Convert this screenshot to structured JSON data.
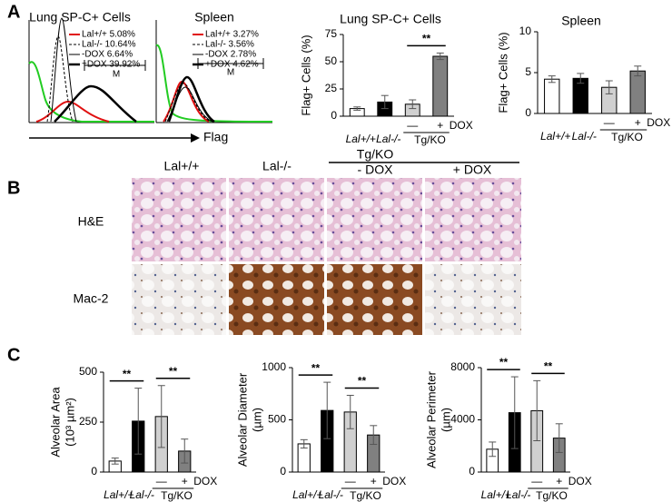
{
  "panels": [
    "A",
    "B",
    "C"
  ],
  "flow": {
    "x_label": "Flag",
    "plots": [
      {
        "title": "Lung SP-C+ Cells",
        "gate": "M",
        "legend": [
          "Lal+/+ 5.08%",
          "Lal-/- 10.64%",
          "-DOX 6.64%",
          "+DOX 39.92%"
        ]
      },
      {
        "title": "Spleen",
        "gate": "M",
        "legend": [
          "Lal+/+ 3.27%",
          "Lal-/- 3.56%",
          "-DOX 2.78%",
          "+DOX 4.62%"
        ]
      }
    ]
  },
  "histology": {
    "columns": [
      "Lal+/+",
      "Lal-/-",
      "- DOX",
      "+ DOX"
    ],
    "group": "Tg/KO",
    "rows": [
      "H&E",
      "Mac-2"
    ]
  },
  "chart_data": [
    {
      "type": "bar",
      "title": "Lung SP-C+ Cells",
      "ylabel": [
        "Flag+ Cells (%)"
      ],
      "categories": [
        "Lal+/+",
        "Lal-/-",
        "—",
        "+"
      ],
      "group": "Tg/KO",
      "treatment": "DOX",
      "colors": [
        "#ffffff",
        "#000000",
        "#d0d0d0",
        "#808080"
      ],
      "values": [
        7,
        13,
        11,
        55
      ],
      "errors": [
        1.5,
        6,
        4,
        3
      ],
      "ylim": [
        0,
        75
      ],
      "yticks": [
        0,
        25,
        50,
        75
      ],
      "brackets": [
        {
          "text": "**",
          "between": [
            "—",
            "+"
          ]
        }
      ]
    },
    {
      "type": "bar",
      "title": "Spleen",
      "ylabel": [
        "Flag+ Cells (%)"
      ],
      "categories": [
        "Lal+/+",
        "Lal-/-",
        "—",
        "+"
      ],
      "group": "Tg/KO",
      "treatment": "DOX",
      "colors": [
        "#ffffff",
        "#000000",
        "#d0d0d0",
        "#808080"
      ],
      "values": [
        4.2,
        4.3,
        3.2,
        5.2
      ],
      "errors": [
        0.4,
        0.6,
        0.8,
        0.6
      ],
      "ylim": [
        0,
        10
      ],
      "yticks": [
        0,
        5,
        10
      ],
      "brackets": []
    },
    {
      "type": "bar",
      "ylabel": [
        "Alveolar Area",
        "(10³ µm²)"
      ],
      "categories": [
        "Lal+/+",
        "Lal-/-",
        "—",
        "+"
      ],
      "group": "Tg/KO",
      "treatment": "DOX",
      "colors": [
        "#ffffff",
        "#000000",
        "#d0d0d0",
        "#808080"
      ],
      "values": [
        55,
        255,
        278,
        105
      ],
      "errors": [
        15,
        165,
        155,
        60
      ],
      "ylim": [
        0,
        500
      ],
      "yticks": [
        0,
        250,
        500
      ],
      "brackets": [
        {
          "text": "**",
          "between": [
            "Lal+/+",
            "Lal-/-"
          ]
        },
        {
          "text": "**",
          "between": [
            "—",
            "+"
          ]
        }
      ]
    },
    {
      "type": "bar",
      "ylabel": [
        "Alveolar Diameter",
        "(µm)"
      ],
      "categories": [
        "Lal+/+",
        "Lal-/-",
        "—",
        "+"
      ],
      "group": "Tg/KO",
      "treatment": "DOX",
      "colors": [
        "#ffffff",
        "#000000",
        "#d0d0d0",
        "#808080"
      ],
      "values": [
        270,
        590,
        575,
        355
      ],
      "errors": [
        40,
        270,
        160,
        90
      ],
      "ylim": [
        0,
        1000
      ],
      "yticks": [
        0,
        500,
        1000
      ],
      "brackets": [
        {
          "text": "**",
          "between": [
            "Lal+/+",
            "Lal-/-"
          ]
        },
        {
          "text": "**",
          "between": [
            "—",
            "+"
          ]
        }
      ]
    },
    {
      "type": "bar",
      "ylabel": [
        "Alveolar Perimeter",
        "(µm)"
      ],
      "categories": [
        "Lal+/+",
        "Lal-/-",
        "—",
        "+"
      ],
      "group": "Tg/KO",
      "treatment": "DOX",
      "colors": [
        "#ffffff",
        "#000000",
        "#d0d0d0",
        "#808080"
      ],
      "values": [
        1750,
        4550,
        4700,
        2600
      ],
      "errors": [
        550,
        2750,
        2300,
        1100
      ],
      "ylim": [
        0,
        8000
      ],
      "yticks": [
        0,
        4000,
        8000
      ],
      "brackets": [
        {
          "text": "**",
          "between": [
            "Lal+/+",
            "Lal-/-"
          ]
        },
        {
          "text": "**",
          "between": [
            "—",
            "+"
          ]
        }
      ]
    }
  ]
}
